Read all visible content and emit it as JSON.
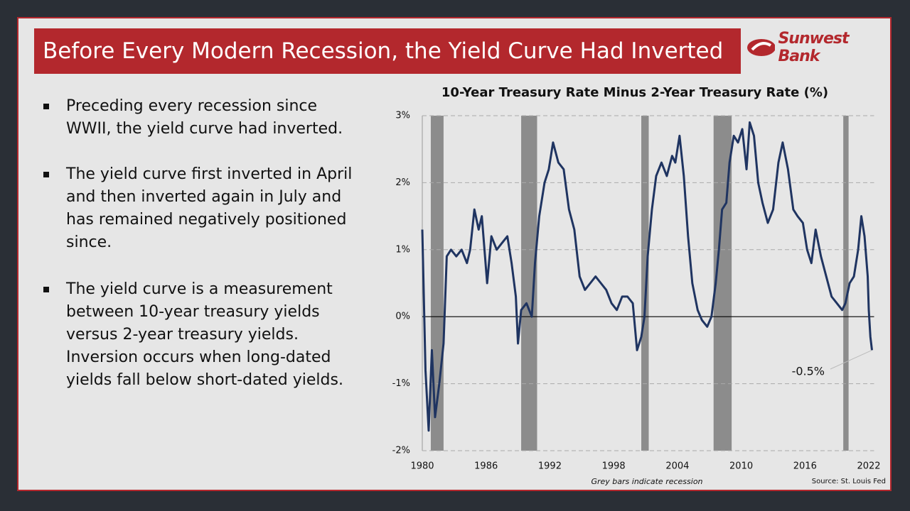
{
  "header": {
    "title": "Before Every Modern Recession, the Yield Curve Had Inverted",
    "logo": "Sunwest Bank"
  },
  "bullets": [
    "Preceding every recession since WWII, the yield curve had inverted.",
    "The yield curve first inverted in April and then inverted again in July and has remained negatively positioned since.",
    "The yield curve is a measurement between 10-year treasury yields versus 2-year treasury yields. Inversion occurs when long-dated yields fall below short-dated yields."
  ],
  "footnote": "Grey bars indicate recession",
  "source": "Source: St. Louis Fed",
  "chart_data": {
    "type": "line",
    "title": "10-Year Treasury Rate Minus 2-Year Treasury Rate (%)",
    "color": "#1f3461",
    "x": [
      1980.0,
      1980.3,
      1980.6,
      1980.9,
      1981.2,
      1981.6,
      1982.0,
      1982.3,
      1982.7,
      1983.2,
      1983.7,
      1984.2,
      1984.5,
      1984.9,
      1985.3,
      1985.6,
      1986.1,
      1986.5,
      1987.0,
      1987.5,
      1988.0,
      1988.4,
      1988.8,
      1989.0,
      1989.3,
      1989.8,
      1990.3,
      1990.6,
      1991.0,
      1991.5,
      1991.9,
      1992.3,
      1992.8,
      1993.3,
      1993.8,
      1994.3,
      1994.8,
      1995.3,
      1995.8,
      1996.3,
      1996.8,
      1997.3,
      1997.8,
      1998.3,
      1998.8,
      1999.3,
      1999.8,
      2000.2,
      2000.6,
      2000.9,
      2001.2,
      2001.6,
      2002.0,
      2002.5,
      2003.0,
      2003.5,
      2003.8,
      2004.2,
      2004.6,
      2005.0,
      2005.4,
      2005.9,
      2006.3,
      2006.8,
      2007.2,
      2007.6,
      2007.9,
      2008.2,
      2008.6,
      2008.9,
      2009.3,
      2009.7,
      2010.1,
      2010.5,
      2010.8,
      2011.2,
      2011.6,
      2012.0,
      2012.5,
      2013.0,
      2013.5,
      2013.9,
      2014.4,
      2014.9,
      2015.3,
      2015.8,
      2016.2,
      2016.6,
      2017.0,
      2017.5,
      2018.0,
      2018.5,
      2019.0,
      2019.5,
      2019.8,
      2020.2,
      2020.6,
      2021.0,
      2021.3,
      2021.6,
      2021.9,
      2022.0,
      2022.15,
      2022.3
    ],
    "values": [
      1.3,
      -0.8,
      -1.7,
      -0.5,
      -1.5,
      -1.0,
      -0.4,
      0.9,
      1.0,
      0.9,
      1.0,
      0.8,
      1.0,
      1.6,
      1.3,
      1.5,
      0.5,
      1.2,
      1.0,
      1.1,
      1.2,
      0.8,
      0.3,
      -0.4,
      0.1,
      0.2,
      0.0,
      0.8,
      1.5,
      2.0,
      2.2,
      2.6,
      2.3,
      2.2,
      1.6,
      1.3,
      0.6,
      0.4,
      0.5,
      0.6,
      0.5,
      0.4,
      0.2,
      0.1,
      0.3,
      0.3,
      0.2,
      -0.5,
      -0.3,
      0.0,
      0.9,
      1.6,
      2.1,
      2.3,
      2.1,
      2.4,
      2.3,
      2.7,
      2.1,
      1.2,
      0.5,
      0.1,
      -0.05,
      -0.15,
      0.0,
      0.5,
      1.0,
      1.6,
      1.7,
      2.3,
      2.7,
      2.6,
      2.8,
      2.2,
      2.9,
      2.7,
      2.0,
      1.7,
      1.4,
      1.6,
      2.3,
      2.6,
      2.2,
      1.6,
      1.5,
      1.4,
      1.0,
      0.8,
      1.3,
      0.9,
      0.6,
      0.3,
      0.2,
      0.1,
      0.2,
      0.5,
      0.6,
      1.0,
      1.5,
      1.2,
      0.6,
      0.1,
      -0.3,
      -0.5
    ],
    "recessions": [
      [
        1980.8,
        1982.0
      ],
      [
        1989.3,
        1990.8
      ],
      [
        2000.6,
        2001.3
      ],
      [
        2007.4,
        2009.1
      ],
      [
        2019.6,
        2020.1
      ]
    ],
    "xlim": [
      1980,
      2022.5
    ],
    "xticks": [
      1980,
      1986,
      1992,
      1998,
      2004,
      2010,
      2016,
      2022
    ],
    "ylim": [
      -2,
      3
    ],
    "yticks": [
      {
        "value": -2,
        "label": "-2%"
      },
      {
        "value": -1,
        "label": "-1%"
      },
      {
        "value": 0,
        "label": "0%"
      },
      {
        "value": 1,
        "label": "1%"
      },
      {
        "value": 2,
        "label": "2%"
      },
      {
        "value": 3,
        "label": "3%"
      }
    ],
    "grid": true,
    "annotation": {
      "x": 2022.3,
      "y": -0.5,
      "label": "-0.5%"
    }
  }
}
